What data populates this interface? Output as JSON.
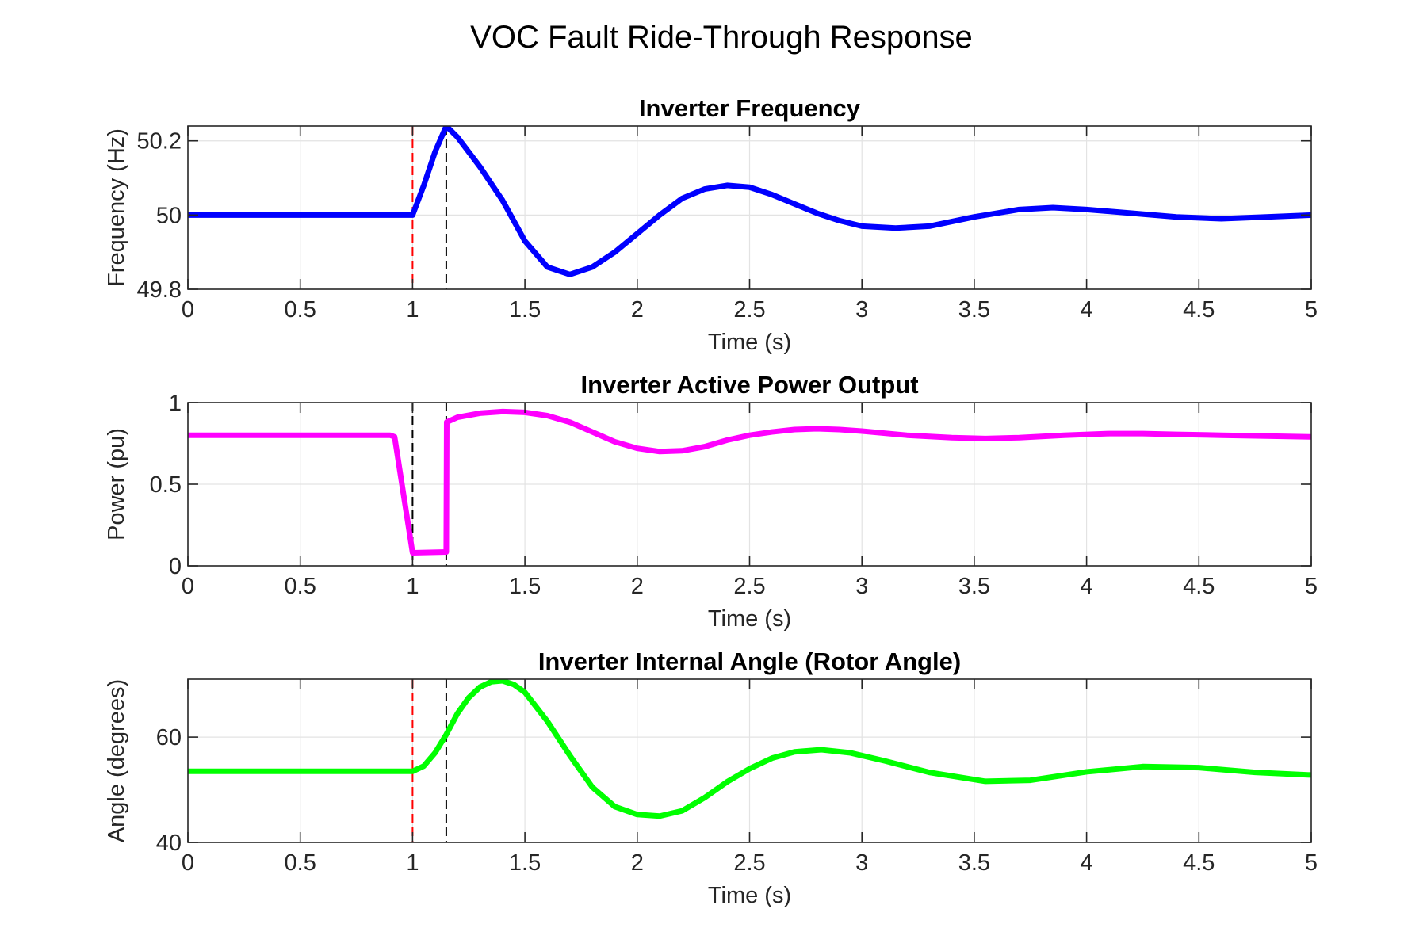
{
  "figure_title": "VOC Fault Ride-Through Response",
  "chart_data": [
    {
      "type": "line",
      "title": "Inverter Frequency",
      "xlabel": "Time (s)",
      "ylabel": "Frequency (Hz)",
      "xlim": [
        0,
        5
      ],
      "ylim": [
        49.8,
        50.24
      ],
      "xticks": [
        0,
        0.5,
        1,
        1.5,
        2,
        2.5,
        3,
        3.5,
        4,
        4.5,
        5
      ],
      "xtick_labels": [
        "0",
        "0.5",
        "1",
        "1.5",
        "2",
        "2.5",
        "3",
        "3.5",
        "4",
        "4.5",
        "5"
      ],
      "yticks": [
        49.8,
        50,
        50.2
      ],
      "ytick_labels": [
        "49.8",
        "50",
        "50.2"
      ],
      "grid": true,
      "vlines": [
        {
          "x": 1.0,
          "color": "#ff0000",
          "style": "dashed"
        },
        {
          "x": 1.15,
          "color": "#000000",
          "style": "dashed"
        }
      ],
      "series": [
        {
          "color": "#0000ff",
          "x": [
            0,
            1,
            1.05,
            1.1,
            1.15,
            1.2,
            1.3,
            1.4,
            1.5,
            1.6,
            1.7,
            1.8,
            1.9,
            2.0,
            2.1,
            2.2,
            2.3,
            2.4,
            2.5,
            2.6,
            2.7,
            2.8,
            2.9,
            3.0,
            3.15,
            3.3,
            3.5,
            3.7,
            3.85,
            4.0,
            4.2,
            4.4,
            4.6,
            4.8,
            5.0
          ],
          "y": [
            50,
            50,
            50.08,
            50.17,
            50.24,
            50.21,
            50.13,
            50.04,
            49.93,
            49.86,
            49.84,
            49.86,
            49.9,
            49.95,
            50.0,
            50.045,
            50.07,
            50.08,
            50.075,
            50.055,
            50.03,
            50.005,
            49.985,
            49.97,
            49.965,
            49.97,
            49.995,
            50.015,
            50.02,
            50.015,
            50.005,
            49.995,
            49.99,
            49.995,
            50
          ]
        }
      ]
    },
    {
      "type": "line",
      "title": "Inverter Active Power Output",
      "xlabel": "Time (s)",
      "ylabel": "Power (pu)",
      "xlim": [
        0,
        5
      ],
      "ylim": [
        0,
        1
      ],
      "xticks": [
        0,
        0.5,
        1,
        1.5,
        2,
        2.5,
        3,
        3.5,
        4,
        4.5,
        5
      ],
      "xtick_labels": [
        "0",
        "0.5",
        "1",
        "1.5",
        "2",
        "2.5",
        "3",
        "3.5",
        "4",
        "4.5",
        "5"
      ],
      "yticks": [
        0,
        0.5,
        1
      ],
      "ytick_labels": [
        "0",
        "0.5",
        "1"
      ],
      "grid": true,
      "vlines": [
        {
          "x": 1.0,
          "color": "#000000",
          "style": "dashed"
        },
        {
          "x": 1.15,
          "color": "#000000",
          "style": "dashed"
        }
      ],
      "series": [
        {
          "color": "#ff00ff",
          "x": [
            0,
            0.9,
            0.92,
            1.0,
            1.15,
            1.152,
            1.2,
            1.3,
            1.4,
            1.5,
            1.6,
            1.7,
            1.8,
            1.9,
            2.0,
            2.1,
            2.2,
            2.3,
            2.4,
            2.5,
            2.6,
            2.7,
            2.8,
            2.9,
            3.0,
            3.2,
            3.4,
            3.55,
            3.7,
            3.9,
            4.1,
            4.25,
            4.4,
            4.6,
            4.8,
            5.0
          ],
          "y": [
            0.8,
            0.8,
            0.79,
            0.08,
            0.085,
            0.88,
            0.91,
            0.935,
            0.945,
            0.94,
            0.92,
            0.88,
            0.82,
            0.76,
            0.72,
            0.7,
            0.705,
            0.73,
            0.77,
            0.8,
            0.82,
            0.835,
            0.84,
            0.835,
            0.825,
            0.8,
            0.785,
            0.78,
            0.785,
            0.8,
            0.81,
            0.81,
            0.805,
            0.8,
            0.795,
            0.79
          ]
        }
      ]
    },
    {
      "type": "line",
      "title": "Inverter Internal Angle (Rotor Angle)",
      "xlabel": "Time (s)",
      "ylabel": "Angle (degrees)",
      "xlim": [
        0,
        5
      ],
      "ylim": [
        40,
        71
      ],
      "xticks": [
        0,
        0.5,
        1,
        1.5,
        2,
        2.5,
        3,
        3.5,
        4,
        4.5,
        5
      ],
      "xtick_labels": [
        "0",
        "0.5",
        "1",
        "1.5",
        "2",
        "2.5",
        "3",
        "3.5",
        "4",
        "4.5",
        "5"
      ],
      "yticks": [
        40,
        60
      ],
      "ytick_labels": [
        "40",
        "60"
      ],
      "grid": true,
      "vlines": [
        {
          "x": 1.0,
          "color": "#ff0000",
          "style": "dashed"
        },
        {
          "x": 1.15,
          "color": "#000000",
          "style": "dashed"
        }
      ],
      "series": [
        {
          "color": "#00ff00",
          "x": [
            0,
            1,
            1.05,
            1.1,
            1.15,
            1.2,
            1.25,
            1.3,
            1.35,
            1.4,
            1.45,
            1.5,
            1.6,
            1.7,
            1.8,
            1.9,
            2.0,
            2.1,
            2.2,
            2.3,
            2.4,
            2.5,
            2.6,
            2.7,
            2.82,
            2.95,
            3.1,
            3.3,
            3.55,
            3.75,
            4.0,
            4.25,
            4.5,
            4.75,
            5.0
          ],
          "y": [
            53.5,
            53.5,
            54.5,
            57.0,
            60.5,
            64.5,
            67.5,
            69.5,
            70.5,
            70.7,
            70.0,
            68.5,
            63.0,
            56.5,
            50.5,
            46.8,
            45.3,
            45.0,
            46.0,
            48.5,
            51.5,
            54.0,
            56.0,
            57.2,
            57.6,
            57.0,
            55.5,
            53.3,
            51.6,
            51.8,
            53.4,
            54.4,
            54.2,
            53.3,
            52.8
          ]
        }
      ]
    }
  ]
}
